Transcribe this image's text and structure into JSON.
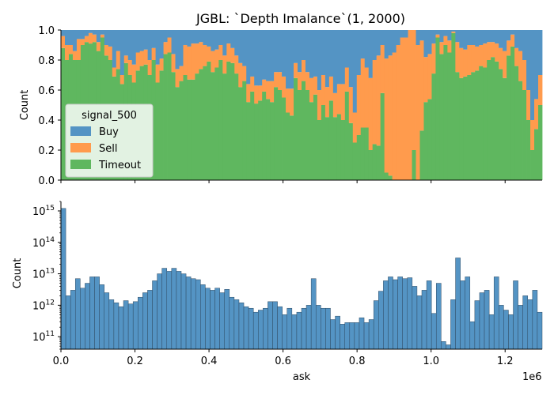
{
  "chart_data": [
    {
      "type": "bar",
      "stacked": true,
      "normalized": true,
      "title": "JGBL: `Depth Imalance`(1, 2000)",
      "ylabel": "Count",
      "ylim": [
        0,
        1
      ],
      "yticks": [
        "0.0",
        "0.2",
        "0.4",
        "0.6",
        "0.8",
        "1.0"
      ],
      "legend": {
        "title": "signal_500",
        "position": "center-left",
        "entries": [
          "Buy",
          "Sell",
          "Timeout"
        ]
      },
      "colors": {
        "Buy": "#5494c4",
        "Sell": "#ff9b4d",
        "Timeout": "#5fb75f"
      },
      "x_range": [
        0,
        1300000
      ],
      "bin_width": 10000,
      "series": [
        {
          "name": "Timeout",
          "values": [
            0.88,
            0.8,
            0.84,
            0.8,
            0.8,
            0.9,
            0.92,
            0.91,
            0.92,
            0.86,
            0.95,
            0.83,
            0.8,
            0.69,
            0.74,
            0.64,
            0.78,
            0.7,
            0.65,
            0.73,
            0.76,
            0.77,
            0.7,
            0.8,
            0.65,
            0.73,
            0.84,
            0.85,
            0.72,
            0.62,
            0.66,
            0.7,
            0.67,
            0.67,
            0.71,
            0.74,
            0.76,
            0.79,
            0.72,
            0.75,
            0.8,
            0.71,
            0.79,
            0.78,
            0.71,
            0.62,
            0.66,
            0.52,
            0.59,
            0.51,
            0.53,
            0.59,
            0.54,
            0.52,
            0.62,
            0.6,
            0.55,
            0.45,
            0.43,
            0.68,
            0.6,
            0.66,
            0.6,
            0.52,
            0.57,
            0.4,
            0.5,
            0.42,
            0.53,
            0.42,
            0.44,
            0.4,
            0.59,
            0.38,
            0.25,
            0.3,
            0.35,
            0.35,
            0.2,
            0.24,
            0.23,
            0.58,
            0.05,
            0.03,
            0.0,
            0.0,
            0.0,
            0.0,
            0.0,
            0.2,
            0.0,
            0.33,
            0.52,
            0.54,
            0.71,
            0.95,
            0.84,
            0.9,
            0.85,
            0.98,
            0.72,
            0.68,
            0.69,
            0.7,
            0.72,
            0.73,
            0.76,
            0.75,
            0.8,
            0.82,
            0.79,
            0.74,
            0.68,
            0.83,
            0.89,
            0.76,
            0.66,
            0.6,
            0.4,
            0.2,
            0.34,
            0.5
          ]
        },
        {
          "name": "Sell",
          "values": [
            0.08,
            0.1,
            0.06,
            0.06,
            0.14,
            0.04,
            0.04,
            0.07,
            0.05,
            0.06,
            0.02,
            0.07,
            0.09,
            0.06,
            0.12,
            0.06,
            0.05,
            0.1,
            0.12,
            0.12,
            0.1,
            0.1,
            0.1,
            0.08,
            0.12,
            0.08,
            0.08,
            0.1,
            0.12,
            0.12,
            0.1,
            0.2,
            0.22,
            0.24,
            0.2,
            0.18,
            0.14,
            0.1,
            0.14,
            0.12,
            0.1,
            0.12,
            0.12,
            0.1,
            0.12,
            0.16,
            0.1,
            0.12,
            0.1,
            0.12,
            0.1,
            0.08,
            0.12,
            0.14,
            0.1,
            0.12,
            0.14,
            0.16,
            0.18,
            0.1,
            0.12,
            0.14,
            0.12,
            0.16,
            0.12,
            0.2,
            0.2,
            0.2,
            0.16,
            0.16,
            0.2,
            0.24,
            0.16,
            0.24,
            0.2,
            0.4,
            0.46,
            0.4,
            0.48,
            0.56,
            0.6,
            0.32,
            0.76,
            0.8,
            0.85,
            0.9,
            0.95,
            0.95,
            1.0,
            0.8,
            0.9,
            0.6,
            0.3,
            0.3,
            0.2,
            0.02,
            0.08,
            0.06,
            0.08,
            0.01,
            0.2,
            0.2,
            0.18,
            0.2,
            0.18,
            0.16,
            0.14,
            0.16,
            0.12,
            0.1,
            0.12,
            0.14,
            0.18,
            0.1,
            0.08,
            0.12,
            0.2,
            0.2,
            0.2,
            0.2,
            0.2,
            0.2
          ]
        },
        {
          "name": "Buy",
          "values": [
            0.04,
            0.1,
            0.1,
            0.14,
            0.06,
            0.06,
            0.04,
            0.02,
            0.03,
            0.08,
            0.03,
            0.1,
            0.11,
            0.25,
            0.14,
            0.3,
            0.17,
            0.2,
            0.23,
            0.15,
            0.14,
            0.13,
            0.2,
            0.12,
            0.23,
            0.19,
            0.08,
            0.05,
            0.16,
            0.26,
            0.24,
            0.1,
            0.11,
            0.09,
            0.09,
            0.08,
            0.1,
            0.11,
            0.14,
            0.13,
            0.1,
            0.17,
            0.09,
            0.12,
            0.17,
            0.22,
            0.24,
            0.36,
            0.31,
            0.37,
            0.37,
            0.33,
            0.34,
            0.34,
            0.28,
            0.28,
            0.31,
            0.39,
            0.39,
            0.22,
            0.28,
            0.2,
            0.28,
            0.32,
            0.31,
            0.4,
            0.3,
            0.38,
            0.31,
            0.42,
            0.36,
            0.36,
            0.25,
            0.38,
            0.55,
            0.3,
            0.19,
            0.25,
            0.32,
            0.2,
            0.17,
            0.1,
            0.19,
            0.17,
            0.15,
            0.1,
            0.05,
            0.05,
            0.0,
            0.0,
            0.1,
            0.07,
            0.18,
            0.16,
            0.09,
            0.03,
            0.08,
            0.04,
            0.07,
            0.01,
            0.08,
            0.12,
            0.13,
            0.1,
            0.1,
            0.11,
            0.1,
            0.09,
            0.08,
            0.08,
            0.09,
            0.12,
            0.14,
            0.07,
            0.03,
            0.12,
            0.14,
            0.2,
            0.4,
            0.6,
            0.46,
            0.3
          ]
        }
      ]
    },
    {
      "type": "bar",
      "histogram": true,
      "yscale": "log",
      "xlabel": "ask",
      "ylabel": "Count",
      "x_offset_label": "1e6",
      "xlim": [
        0,
        1.3
      ],
      "xticks": [
        "0.0",
        "0.2",
        "0.4",
        "0.6",
        "0.8",
        "1.0",
        "1.2"
      ],
      "ylim": [
        40000000000,
        2000000000000000
      ],
      "yticks": [
        "10^11",
        "10^12",
        "10^13",
        "10^14",
        "10^15"
      ],
      "bin_width": 10000,
      "color": "#5494c4",
      "values": [
        1200000000000000.0,
        2000000000000.0,
        3000000000000.0,
        7000000000000.0,
        3500000000000.0,
        5000000000000.0,
        8000000000000.0,
        8000000000000.0,
        4500000000000.0,
        2500000000000.0,
        1500000000000.0,
        1200000000000.0,
        900000000000.0,
        1400000000000.0,
        1100000000000.0,
        1300000000000.0,
        1800000000000.0,
        2500000000000.0,
        3000000000000.0,
        6000000000000.0,
        10000000000000.0,
        15000000000000.0,
        12000000000000.0,
        15000000000000.0,
        12000000000000.0,
        10000000000000.0,
        8000000000000.0,
        7000000000000.0,
        6500000000000.0,
        4500000000000.0,
        3500000000000.0,
        3000000000000.0,
        3500000000000.0,
        2500000000000.0,
        3200000000000.0,
        1800000000000.0,
        1500000000000.0,
        1200000000000.0,
        900000000000.0,
        800000000000.0,
        600000000000.0,
        700000000000.0,
        800000000000.0,
        1300000000000.0,
        1300000000000.0,
        900000000000.0,
        500000000000.0,
        800000000000.0,
        500000000000.0,
        600000000000.0,
        800000000000.0,
        1000000000000.0,
        7000000000000.0,
        1000000000000.0,
        800000000000.0,
        800000000000.0,
        350000000000.0,
        450000000000.0,
        250000000000.0,
        280000000000.0,
        280000000000.0,
        280000000000.0,
        400000000000.0,
        280000000000.0,
        350000000000.0,
        1400000000000.0,
        2800000000000.0,
        6000000000000.0,
        8000000000000.0,
        6500000000000.0,
        8000000000000.0,
        7000000000000.0,
        7500000000000.0,
        4000000000000.0,
        2000000000000.0,
        3000000000000.0,
        6000000000000.0,
        550000000000.0,
        5000000000000.0,
        70000000000.0,
        55000000000.0,
        1500000000000.0,
        32000000000000.0,
        6000000000000.0,
        8000000000000.0,
        300000000000.0,
        1400000000000.0,
        2500000000000.0,
        3000000000000.0,
        500000000000.0,
        8000000000000.0,
        1000000000000.0,
        700000000000.0,
        500000000000.0,
        6000000000000.0,
        1000000000000.0,
        2000000000000.0,
        1500000000000.0,
        3000000000000.0,
        600000000000.0
      ]
    }
  ]
}
